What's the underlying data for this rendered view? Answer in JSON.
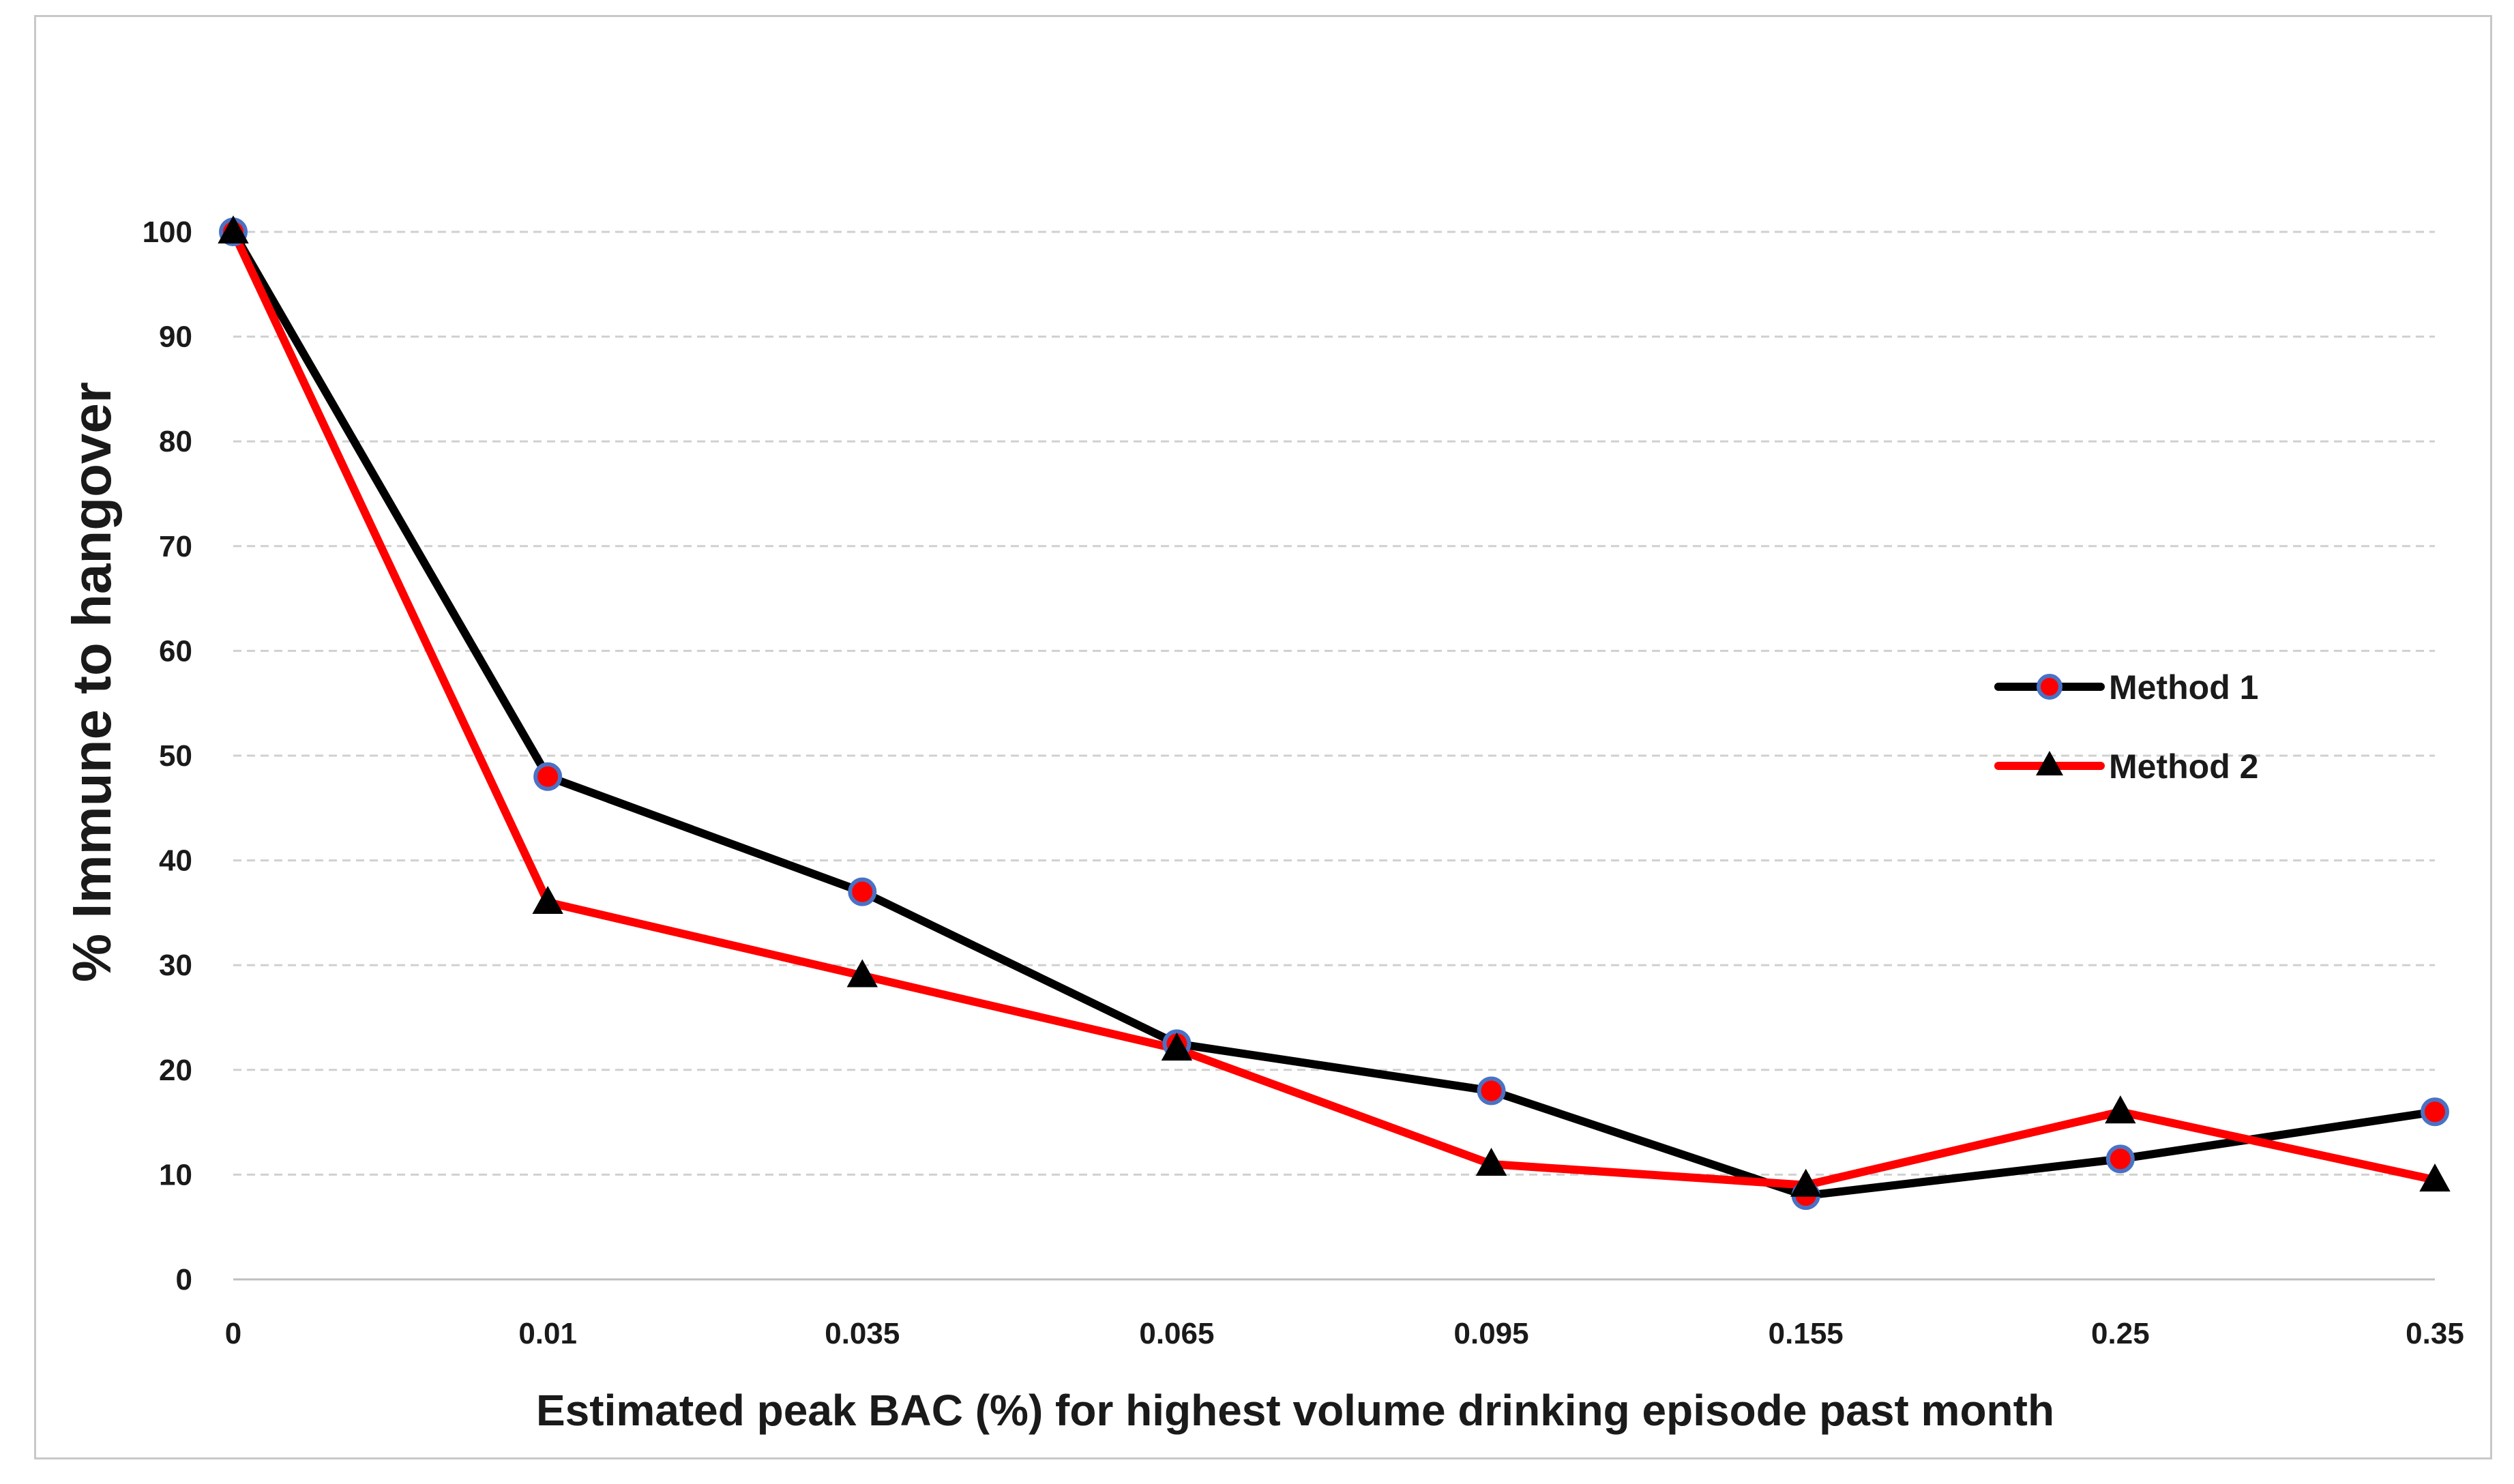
{
  "chart_data": {
    "type": "line",
    "title": "",
    "xlabel": "Estimated peak BAC (%) for highest volume drinking episode past month",
    "ylabel": "% Immune to hangover",
    "categories": [
      "0",
      "0.01",
      "0.035",
      "0.065",
      "0.095",
      "0.155",
      "0.25",
      "0.35"
    ],
    "ylim": [
      0,
      100
    ],
    "yticks": [
      0,
      10,
      20,
      30,
      40,
      50,
      60,
      70,
      80,
      90,
      100
    ],
    "grid": "horizontal dashed",
    "legend_position": "right",
    "series": [
      {
        "name": "Method 1",
        "values": [
          100,
          48,
          37,
          22.5,
          18,
          8,
          11.5,
          16
        ],
        "line_color": "#000000",
        "marker": "circle",
        "marker_fill": "#ff0000",
        "marker_edge": "#4a72c4"
      },
      {
        "name": "Method 2",
        "values": [
          100,
          36,
          29,
          22,
          11,
          9,
          16,
          9.5
        ],
        "line_color": "#ff0000",
        "marker": "triangle",
        "marker_fill": "#000000",
        "marker_edge": "#000000"
      }
    ]
  }
}
